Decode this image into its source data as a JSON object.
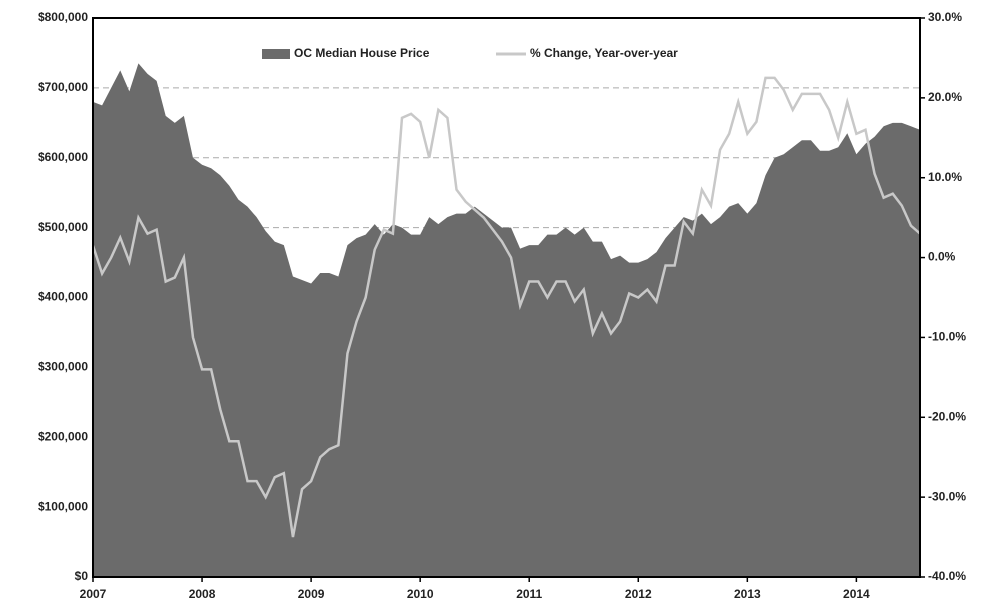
{
  "chart_data": {
    "type": "area-line",
    "categories": [
      "2007",
      null,
      null,
      null,
      null,
      null,
      null,
      null,
      null,
      null,
      null,
      null,
      "2008",
      null,
      null,
      null,
      null,
      null,
      null,
      null,
      null,
      null,
      null,
      null,
      "2009",
      null,
      null,
      null,
      null,
      null,
      null,
      null,
      null,
      null,
      null,
      null,
      "2010",
      null,
      null,
      null,
      null,
      null,
      null,
      null,
      null,
      null,
      null,
      null,
      "2011",
      null,
      null,
      null,
      null,
      null,
      null,
      null,
      null,
      null,
      null,
      null,
      "2012",
      null,
      null,
      null,
      null,
      null,
      null,
      null,
      null,
      null,
      null,
      null,
      "2013",
      null,
      null,
      null,
      null,
      null,
      null,
      null,
      null,
      null,
      null,
      null,
      "2014",
      null,
      null,
      null,
      null,
      null,
      null,
      null
    ],
    "series": [
      {
        "name": "OC Median House Price",
        "color": "#6b6b6b",
        "kind": "area",
        "values": [
          680000,
          675000,
          700000,
          725000,
          695000,
          735000,
          720000,
          710000,
          660000,
          650000,
          660000,
          600000,
          590000,
          585000,
          575000,
          560000,
          540000,
          530000,
          515000,
          495000,
          480000,
          475000,
          430000,
          425000,
          420000,
          435000,
          435000,
          430000,
          475000,
          485000,
          490000,
          505000,
          490000,
          505000,
          500000,
          490000,
          490000,
          515000,
          505000,
          515000,
          520000,
          520000,
          530000,
          520000,
          510000,
          500000,
          500000,
          470000,
          475000,
          475000,
          490000,
          490000,
          500000,
          490000,
          500000,
          480000,
          480000,
          455000,
          460000,
          450000,
          450000,
          455000,
          465000,
          485000,
          500000,
          515000,
          510000,
          520000,
          505000,
          515000,
          530000,
          535000,
          520000,
          535000,
          575000,
          600000,
          605000,
          615000,
          625000,
          625000,
          610000,
          610000,
          615000,
          635000,
          605000,
          620000,
          630000,
          645000,
          650000,
          650000,
          645000,
          640000
        ]
      },
      {
        "name": "% Change, Year-over-year",
        "color": "#c8c8c8",
        "kind": "line",
        "axis": "y2",
        "values": [
          1.5,
          -2,
          0,
          2.5,
          -0.5,
          5,
          3,
          3.5,
          -3,
          -2.5,
          0,
          -10,
          -14,
          -14,
          -19,
          -23,
          -23,
          -28,
          -28,
          -30,
          -27.5,
          -27,
          -35,
          -29,
          -28,
          -25,
          -24,
          -23.5,
          -12,
          -8,
          -5,
          1,
          3.5,
          3,
          17.5,
          18,
          17,
          12.5,
          18.5,
          17.5,
          8.5,
          7,
          6,
          5,
          3.5,
          2,
          0,
          -6,
          -3,
          -3,
          -5,
          -3,
          -3,
          -5.5,
          -4,
          -9.5,
          -7,
          -9.5,
          -8,
          -4.5,
          -5,
          -4,
          -5.5,
          -1,
          -1,
          4.5,
          3,
          8.5,
          6.5,
          13.5,
          15.5,
          19.5,
          15.5,
          17,
          22.5,
          22.5,
          21,
          18.5,
          20.5,
          20.5,
          20.5,
          18.5,
          15,
          19.5,
          15.5,
          16,
          10.5,
          7.5,
          8,
          6.5,
          4,
          3
        ]
      }
    ],
    "ylim": [
      0,
      800000
    ],
    "yticks": [
      {
        "value": 0,
        "label": "$0"
      },
      {
        "value": 100000,
        "label": "$100,000"
      },
      {
        "value": 200000,
        "label": "$200,000"
      },
      {
        "value": 300000,
        "label": "$300,000"
      },
      {
        "value": 400000,
        "label": "$400,000"
      },
      {
        "value": 500000,
        "label": "$500,000"
      },
      {
        "value": 600000,
        "label": "$600,000"
      },
      {
        "value": 700000,
        "label": "$700,000"
      },
      {
        "value": 800000,
        "label": "$800,000"
      }
    ],
    "y2lim": [
      -40,
      30
    ],
    "y2ticks": [
      {
        "value": -40,
        "label": "-40.0%"
      },
      {
        "value": -30,
        "label": "-30.0%"
      },
      {
        "value": -20,
        "label": "-20.0%"
      },
      {
        "value": -10,
        "label": "-10.0%"
      },
      {
        "value": 0,
        "label": "0.0%"
      },
      {
        "value": 10,
        "label": "10.0%"
      },
      {
        "value": 20,
        "label": "20.0%"
      },
      {
        "value": 30,
        "label": "30.0%"
      }
    ],
    "grid": true,
    "legend": "top"
  }
}
